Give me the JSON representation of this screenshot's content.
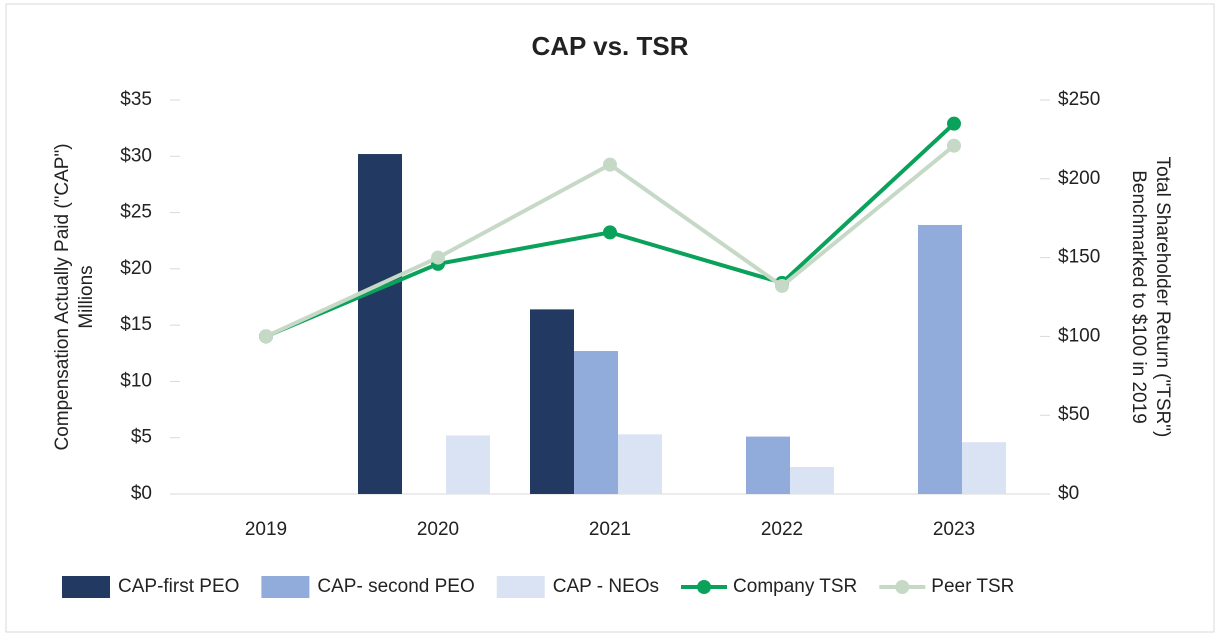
{
  "chart_data": {
    "type": "bar_line",
    "title": "CAP vs. TSR",
    "ylabel": [
      "Compensation Actually Paid (\"CAP\")",
      "Millions"
    ],
    "y2label": [
      "Total Shareholder Return (\"TSR\")",
      "Benchmarked to $100 in 2019"
    ],
    "categories": [
      "2019",
      "2020",
      "2021",
      "2022",
      "2023"
    ],
    "series": [
      {
        "name": "CAP-first PEO",
        "type": "bar",
        "color": "#223962",
        "values": [
          null,
          30.2,
          16.4,
          null,
          null
        ]
      },
      {
        "name": "CAP- second PEO",
        "type": "bar",
        "color": "#91acdb",
        "values": [
          null,
          null,
          12.7,
          5.1,
          23.9
        ]
      },
      {
        "name": "CAP - NEOs",
        "type": "bar",
        "color": "#d9e3f4",
        "values": [
          null,
          5.2,
          5.3,
          2.4,
          4.6
        ]
      },
      {
        "name": "Company TSR",
        "type": "line",
        "axis": "y2",
        "color": "#0aa25a",
        "values": [
          100,
          146,
          166,
          134,
          235
        ]
      },
      {
        "name": "Peer TSR",
        "type": "line",
        "axis": "y2",
        "color": "#c6d9c6",
        "values": [
          100,
          150,
          209,
          132,
          221
        ]
      }
    ],
    "ylim": [
      0,
      35
    ],
    "yticks": [
      {
        "value": 0,
        "label": "$0"
      },
      {
        "value": 5,
        "label": "$5"
      },
      {
        "value": 10,
        "label": "$10"
      },
      {
        "value": 15,
        "label": "$15"
      },
      {
        "value": 20,
        "label": "$20"
      },
      {
        "value": 25,
        "label": "$25"
      },
      {
        "value": 30,
        "label": "$30"
      },
      {
        "value": 35,
        "label": "$35"
      }
    ],
    "y2lim": [
      0,
      250
    ],
    "y2ticks": [
      {
        "value": 0,
        "label": "$0"
      },
      {
        "value": 50,
        "label": "$50"
      },
      {
        "value": 100,
        "label": "$100"
      },
      {
        "value": 150,
        "label": "$150"
      },
      {
        "value": 200,
        "label": "$200"
      },
      {
        "value": 250,
        "label": "$250"
      }
    ],
    "legend": "bottom"
  }
}
